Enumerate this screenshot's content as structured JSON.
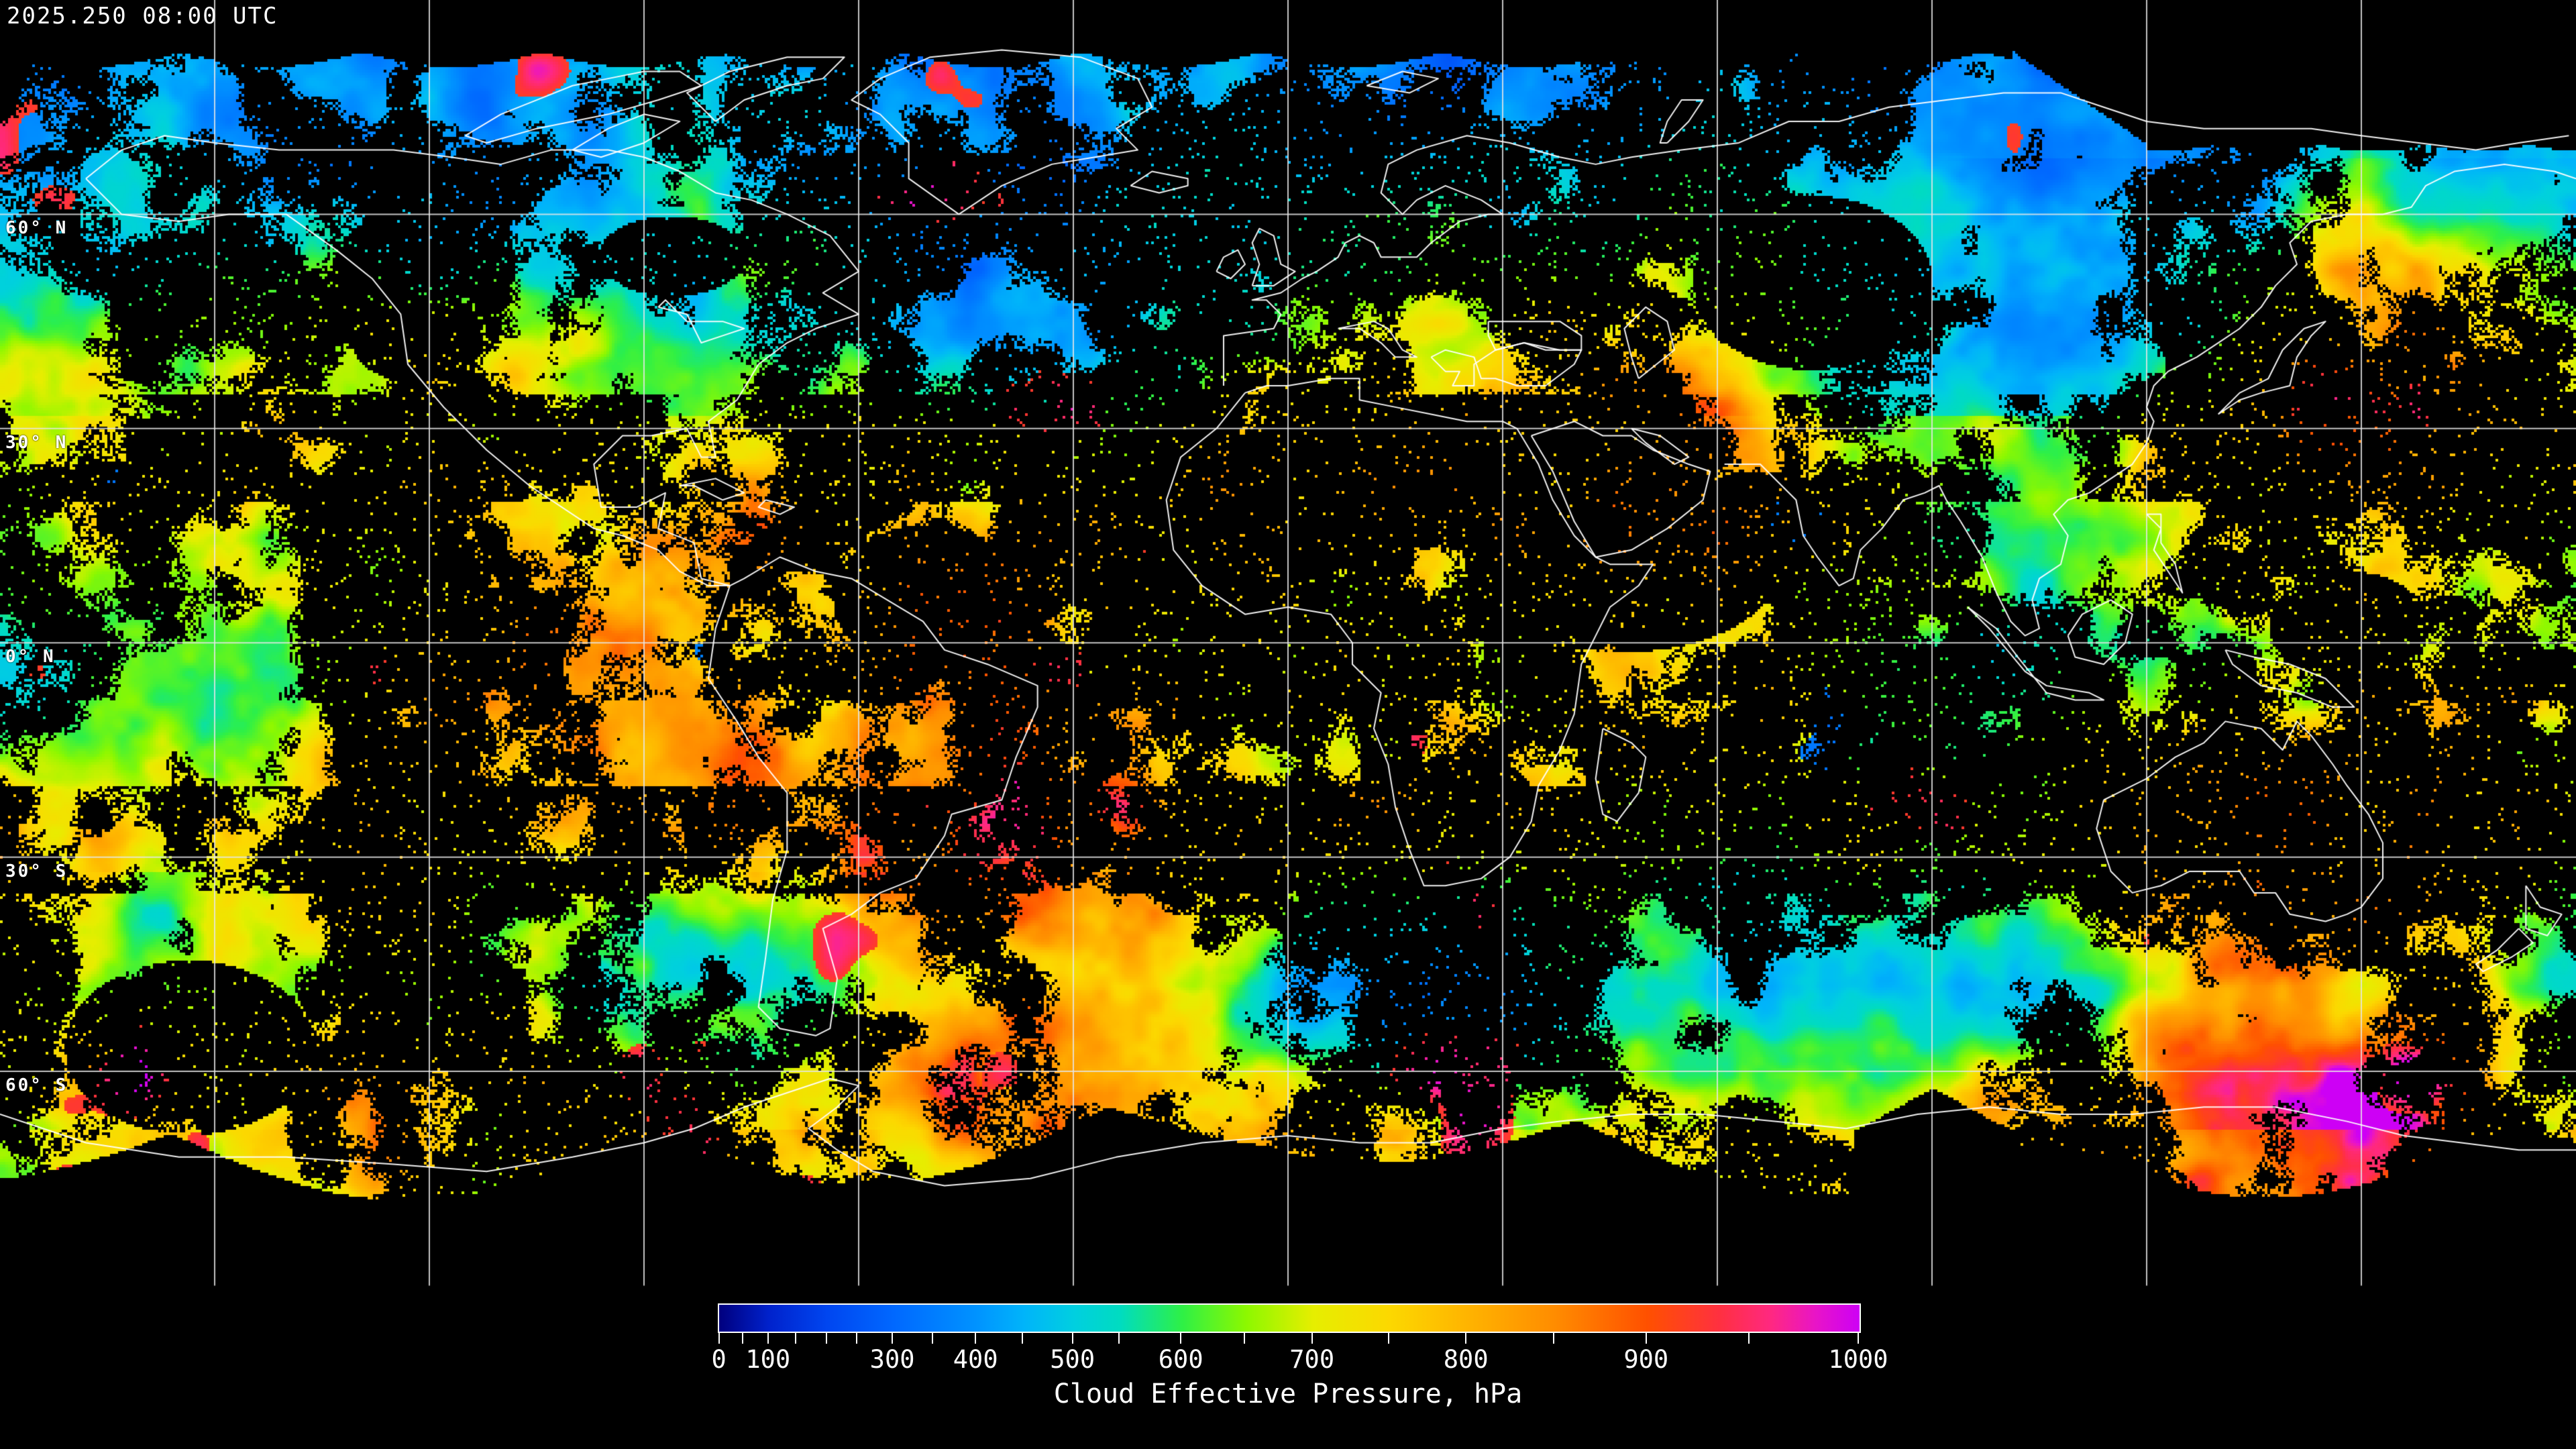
{
  "header": {
    "timestamp": "2025.250 08:00 UTC"
  },
  "map": {
    "projection": "equirectangular",
    "graticule_interval_deg": 30,
    "gridline_color": "#e6e6e6",
    "coastline_color": "#ffffff",
    "background_color": "#000000",
    "latitude_labels": [
      {
        "label": "60° N",
        "lat": 60
      },
      {
        "label": "30° N",
        "lat": 30
      },
      {
        "label": "0° N",
        "lat": 0
      },
      {
        "label": "30° S",
        "lat": -30
      },
      {
        "label": "60° S",
        "lat": -60
      }
    ]
  },
  "colorbar": {
    "title": "Cloud Effective Pressure, hPa",
    "unit": "hPa",
    "min": 0,
    "max": 1000,
    "tick_labels": [
      "0",
      "100",
      "300",
      "400",
      "500",
      "600",
      "700",
      "800",
      "900",
      "1000"
    ],
    "tick_label_values": [
      0,
      100,
      300,
      400,
      500,
      600,
      700,
      800,
      900,
      1000
    ],
    "scale_ticks": [
      {
        "value": 0,
        "frac": 0.001
      },
      {
        "value": 50,
        "frac": 0.022
      },
      {
        "value": 100,
        "frac": 0.044
      },
      {
        "value": 150,
        "frac": 0.068
      },
      {
        "value": 200,
        "frac": 0.095
      },
      {
        "value": 250,
        "frac": 0.122
      },
      {
        "value": 300,
        "frac": 0.153
      },
      {
        "value": 350,
        "frac": 0.188
      },
      {
        "value": 400,
        "frac": 0.226
      },
      {
        "value": 450,
        "frac": 0.267
      },
      {
        "value": 500,
        "frac": 0.311
      },
      {
        "value": 550,
        "frac": 0.352
      },
      {
        "value": 600,
        "frac": 0.406
      },
      {
        "value": 650,
        "frac": 0.462
      },
      {
        "value": 700,
        "frac": 0.521
      },
      {
        "value": 750,
        "frac": 0.588
      },
      {
        "value": 800,
        "frac": 0.656
      },
      {
        "value": 850,
        "frac": 0.733
      },
      {
        "value": 900,
        "frac": 0.814
      },
      {
        "value": 950,
        "frac": 0.904
      },
      {
        "value": 1000,
        "frac": 1.0
      }
    ],
    "color_stops": [
      {
        "value": 0,
        "color": "#000080"
      },
      {
        "value": 100,
        "color": "#0022cc"
      },
      {
        "value": 200,
        "color": "#0046f0"
      },
      {
        "value": 300,
        "color": "#0068ff"
      },
      {
        "value": 400,
        "color": "#0093ff"
      },
      {
        "value": 450,
        "color": "#00b4fa"
      },
      {
        "value": 500,
        "color": "#00cfe0"
      },
      {
        "value": 550,
        "color": "#00dcc0"
      },
      {
        "value": 600,
        "color": "#2ef046"
      },
      {
        "value": 650,
        "color": "#8cf800"
      },
      {
        "value": 700,
        "color": "#e6ee00"
      },
      {
        "value": 750,
        "color": "#fcd800"
      },
      {
        "value": 800,
        "color": "#ffb400"
      },
      {
        "value": 850,
        "color": "#ff8c00"
      },
      {
        "value": 900,
        "color": "#ff5000"
      },
      {
        "value": 935,
        "color": "#ff3040"
      },
      {
        "value": 960,
        "color": "#ff2882"
      },
      {
        "value": 980,
        "color": "#e814c8"
      },
      {
        "value": 1000,
        "color": "#cd00f5"
      }
    ]
  }
}
